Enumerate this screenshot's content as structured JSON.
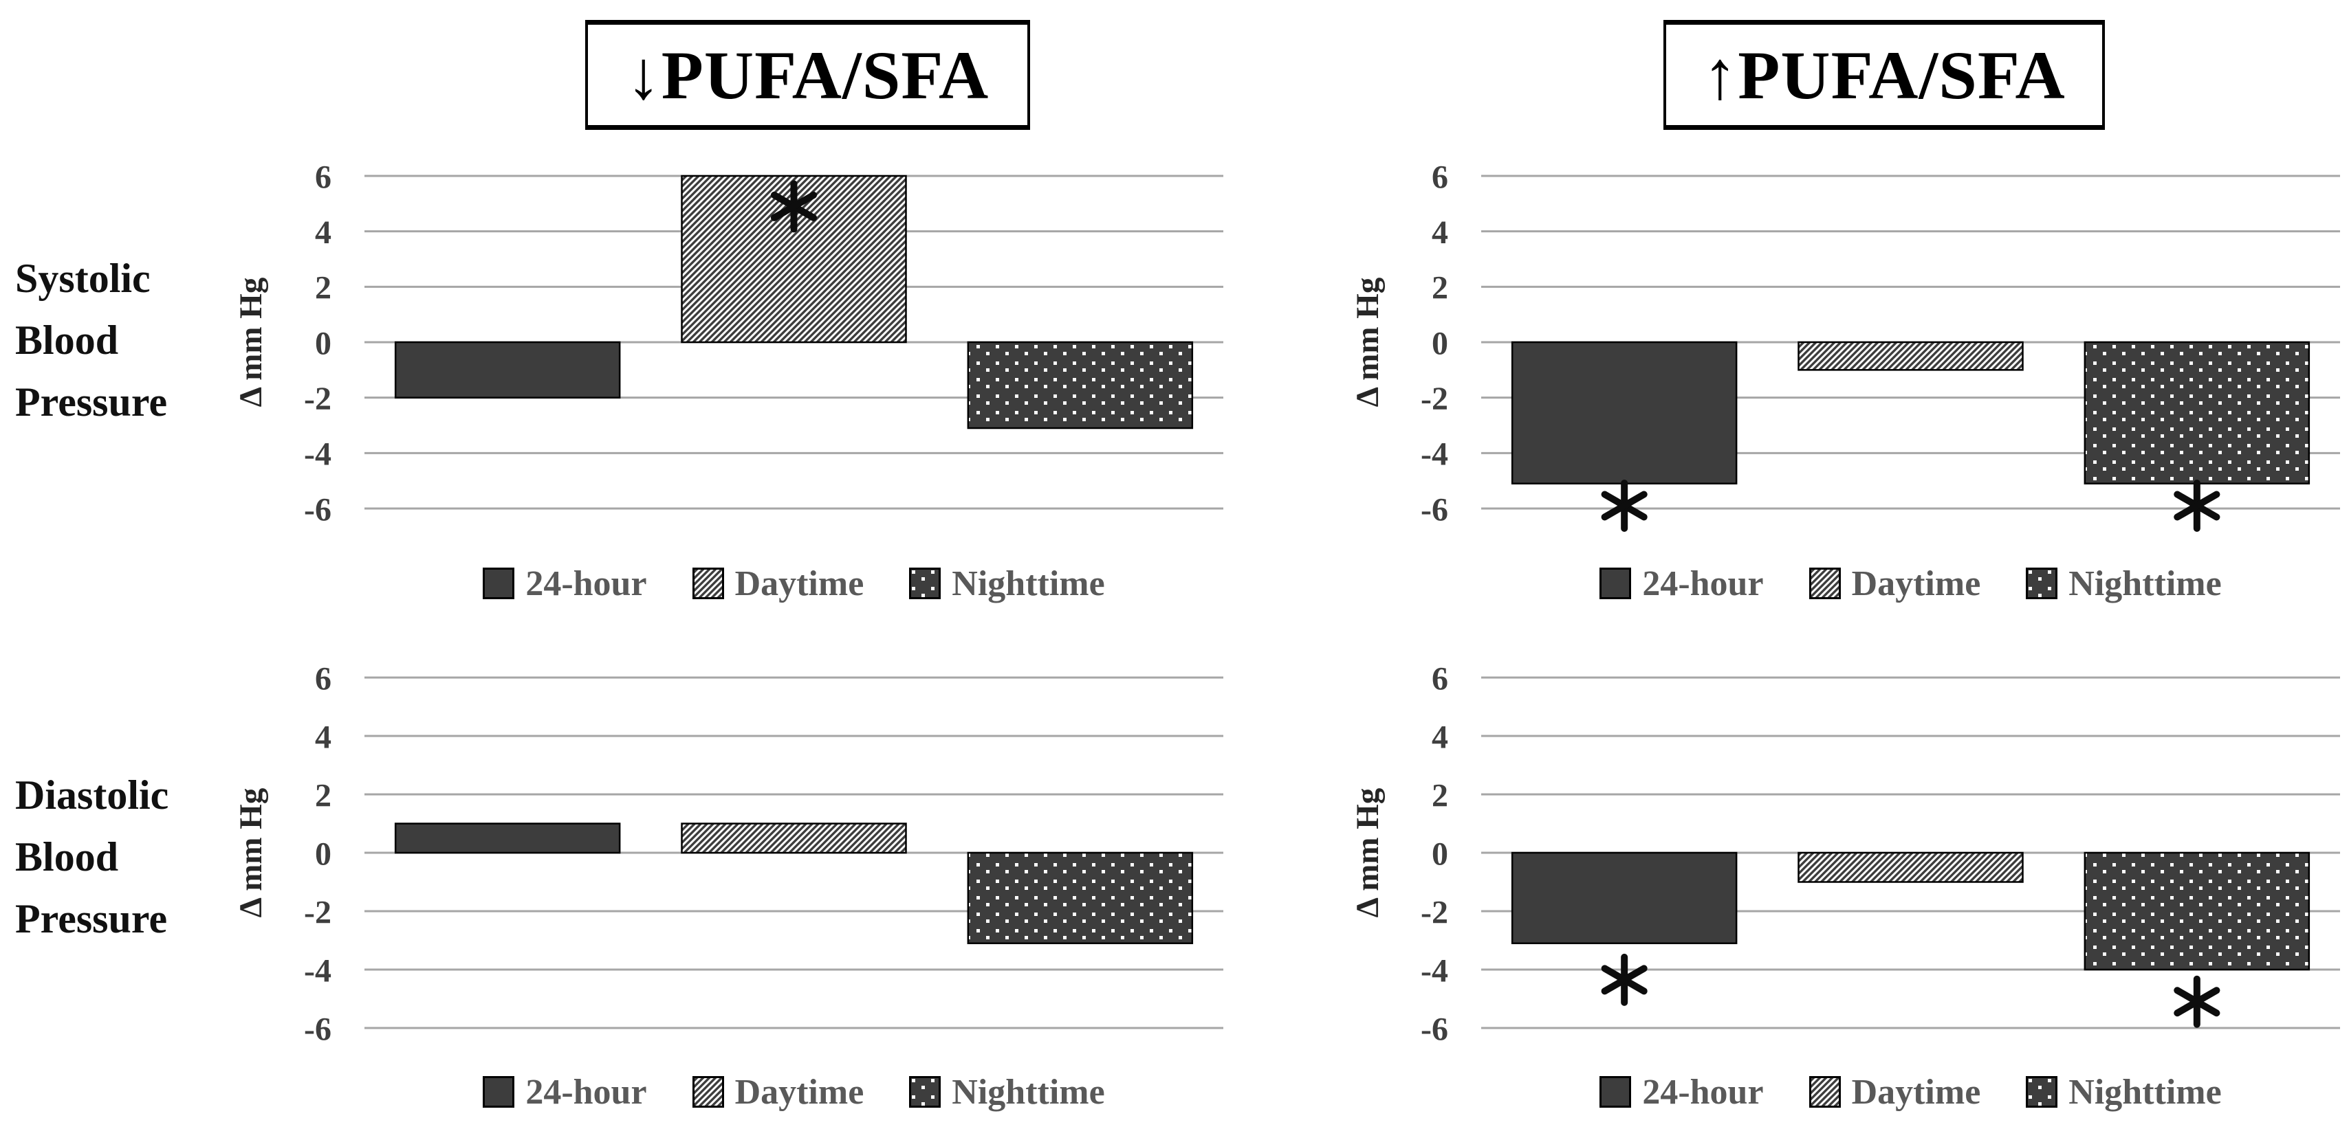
{
  "figure": {
    "background": "#ffffff",
    "columns": [
      {
        "id": "lower-pufa-sfa",
        "title": "↓PUFA/SFA"
      },
      {
        "id": "higher-pufa-sfa",
        "title": "↑PUFA/SFA"
      }
    ],
    "row_labels": [
      {
        "id": "systolic",
        "lines": [
          "Systolic",
          "Blood",
          "Pressure"
        ]
      },
      {
        "id": "diastolic",
        "lines": [
          "Diastolic",
          "Blood",
          "Pressure"
        ]
      }
    ]
  },
  "axis": {
    "label": "Δ mm Hg",
    "ticks": [
      6,
      4,
      2,
      0,
      -2,
      -4,
      -6
    ],
    "ymin": -6,
    "ymax": 6,
    "grid": true
  },
  "legend": {
    "position": "below-each-chart",
    "items": [
      {
        "label": "24-hour",
        "pattern": "solid"
      },
      {
        "label": "Daytime",
        "pattern": "diagonal-hatch"
      },
      {
        "label": "Nighttime",
        "pattern": "dots"
      }
    ]
  },
  "colors": {
    "bar_dark": "#3d3d3d",
    "bar_outline": "#000000",
    "hatch_bg": "#ffffff",
    "hatch_stripe": "#3d3d3d",
    "dot_fill": "#ffffff",
    "gridline": "#a6a6a6",
    "tick_text": "#3f3f3f",
    "axis_label_text": "#262626",
    "legend_text": "#595959",
    "row_label_text": "#111111",
    "title_text": "#000000",
    "annotation": "#0d0d0d"
  },
  "chart_data": [
    {
      "id": "systolic-lower-pufa-sfa",
      "type": "bar",
      "title_box": "↓PUFA/SFA",
      "row": "Systolic Blood Pressure",
      "ylabel": "Δ mm Hg",
      "ylim": [
        -6,
        6
      ],
      "yticks": [
        6,
        4,
        2,
        0,
        -2,
        -4,
        -6
      ],
      "categories": [
        "24-hour",
        "Daytime",
        "Nighttime"
      ],
      "values": [
        -2,
        6,
        -3.1
      ],
      "annotations": [
        {
          "category": "Daytime",
          "symbol": "*",
          "value_y": 4.9,
          "placement": "inside-bar-top"
        }
      ]
    },
    {
      "id": "systolic-higher-pufa-sfa",
      "type": "bar",
      "title_box": "↑PUFA/SFA",
      "row": "Systolic Blood Pressure",
      "ylabel": "Δ mm Hg",
      "ylim": [
        -6,
        6
      ],
      "yticks": [
        6,
        4,
        2,
        0,
        -2,
        -4,
        -6
      ],
      "categories": [
        "24-hour",
        "Daytime",
        "Nighttime"
      ],
      "values": [
        -5.1,
        -1,
        -5.1
      ],
      "annotations": [
        {
          "category": "24-hour",
          "symbol": "*",
          "value_y": -5.9,
          "placement": "below-bar"
        },
        {
          "category": "Nighttime",
          "symbol": "*",
          "value_y": -5.9,
          "placement": "below-bar"
        }
      ]
    },
    {
      "id": "diastolic-lower-pufa-sfa",
      "type": "bar",
      "title_box": "↓PUFA/SFA",
      "row": "Diastolic Blood Pressure",
      "ylabel": "Δ mm Hg",
      "ylim": [
        -6,
        6
      ],
      "yticks": [
        6,
        4,
        2,
        0,
        -2,
        -4,
        -6
      ],
      "categories": [
        "24-hour",
        "Daytime",
        "Nighttime"
      ],
      "values": [
        1,
        1,
        -3.1
      ],
      "annotations": []
    },
    {
      "id": "diastolic-higher-pufa-sfa",
      "type": "bar",
      "title_box": "↑PUFA/SFA",
      "row": "Diastolic Blood Pressure",
      "ylabel": "Δ mm Hg",
      "ylim": [
        -6,
        6
      ],
      "yticks": [
        6,
        4,
        2,
        0,
        -2,
        -4,
        -6
      ],
      "categories": [
        "24-hour",
        "Daytime",
        "Nighttime"
      ],
      "values": [
        -3.1,
        -1,
        -4
      ],
      "annotations": [
        {
          "category": "24-hour",
          "symbol": "*",
          "value_y": -4.35,
          "placement": "below-bar"
        },
        {
          "category": "Nighttime",
          "symbol": "*",
          "value_y": -5.1,
          "placement": "below-bar"
        }
      ]
    }
  ]
}
